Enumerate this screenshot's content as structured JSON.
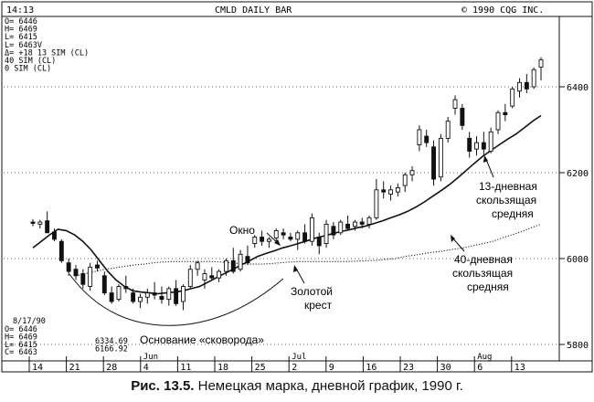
{
  "header": {
    "time": "14:13",
    "title": "CMLD DAILY BAR",
    "copyright": "©     1990 CQG INC."
  },
  "readout_top": [
    "O= 6446",
    "H= 6469",
    "L= 6415",
    "L= 6463V",
    "Δ=    +18  13 SIM (CL)",
    "           40 SIM (CL)",
    "            0 SIM (CL)"
  ],
  "readout_bottom": {
    "date": "8/17/90",
    "lines": [
      "O=  6446",
      "H=  6469",
      "L=  6415",
      "C=  6463"
    ],
    "values": [
      "6334.69",
      "6166.92"
    ]
  },
  "caption": {
    "prefix": "Рис. 13.5.",
    "text": " Немецкая марка, дневной график, 1990 г."
  },
  "chart_data": {
    "type": "candlestick",
    "title": "CMLD DAILY BAR",
    "y_ticks": [
      5800,
      6000,
      6200,
      6400
    ],
    "ylim": [
      5780,
      6490
    ],
    "x_tick_labels": [
      "14",
      "21",
      "28",
      "4",
      "11",
      "18",
      "25",
      "2",
      "9",
      "16",
      "23",
      "30",
      "6",
      "13"
    ],
    "month_labels": [
      {
        "label": "Jun",
        "after_tick": 2
      },
      {
        "label": "Jul",
        "after_tick": 6
      },
      {
        "label": "Aug",
        "after_tick": 11
      }
    ],
    "candles": [
      {
        "o": 6085,
        "h": 6092,
        "l": 6075,
        "c": 6082
      },
      {
        "o": 6080,
        "h": 6090,
        "l": 6070,
        "c": 6085
      },
      {
        "o": 6088,
        "h": 6110,
        "l": 6060,
        "c": 6060
      },
      {
        "o": 6062,
        "h": 6070,
        "l": 6040,
        "c": 6045
      },
      {
        "o": 6040,
        "h": 6045,
        "l": 5990,
        "c": 5995
      },
      {
        "o": 5990,
        "h": 6000,
        "l": 5960,
        "c": 5970
      },
      {
        "o": 5975,
        "h": 5985,
        "l": 5950,
        "c": 5960
      },
      {
        "o": 5965,
        "h": 5975,
        "l": 5930,
        "c": 5940
      },
      {
        "o": 5935,
        "h": 5990,
        "l": 5925,
        "c": 5980
      },
      {
        "o": 5985,
        "h": 5995,
        "l": 5970,
        "c": 5978
      },
      {
        "o": 5960,
        "h": 5970,
        "l": 5915,
        "c": 5920
      },
      {
        "o": 5920,
        "h": 5935,
        "l": 5895,
        "c": 5900
      },
      {
        "o": 5905,
        "h": 5940,
        "l": 5900,
        "c": 5935
      },
      {
        "o": 5935,
        "h": 5960,
        "l": 5920,
        "c": 5930
      },
      {
        "o": 5920,
        "h": 5930,
        "l": 5895,
        "c": 5900
      },
      {
        "o": 5900,
        "h": 5918,
        "l": 5885,
        "c": 5910
      },
      {
        "o": 5910,
        "h": 5930,
        "l": 5895,
        "c": 5920
      },
      {
        "o": 5920,
        "h": 5945,
        "l": 5905,
        "c": 5915
      },
      {
        "o": 5912,
        "h": 5935,
        "l": 5895,
        "c": 5905
      },
      {
        "o": 5905,
        "h": 5935,
        "l": 5890,
        "c": 5930
      },
      {
        "o": 5930,
        "h": 5950,
        "l": 5890,
        "c": 5895
      },
      {
        "o": 5900,
        "h": 5940,
        "l": 5880,
        "c": 5935
      },
      {
        "o": 5935,
        "h": 5985,
        "l": 5930,
        "c": 5975
      },
      {
        "o": 5975,
        "h": 5995,
        "l": 5960,
        "c": 5990
      },
      {
        "o": 5950,
        "h": 5975,
        "l": 5930,
        "c": 5965
      },
      {
        "o": 5960,
        "h": 5980,
        "l": 5950,
        "c": 5955
      },
      {
        "o": 5955,
        "h": 5975,
        "l": 5945,
        "c": 5970
      },
      {
        "o": 5970,
        "h": 6000,
        "l": 5960,
        "c": 5995
      },
      {
        "o": 5995,
        "h": 6025,
        "l": 5965,
        "c": 5970
      },
      {
        "o": 5975,
        "h": 6020,
        "l": 5970,
        "c": 6010
      },
      {
        "o": 6005,
        "h": 6030,
        "l": 5985,
        "c": 5990
      },
      {
        "o": 6035,
        "h": 6055,
        "l": 6025,
        "c": 6050
      },
      {
        "o": 6050,
        "h": 6065,
        "l": 6030,
        "c": 6040
      },
      {
        "o": 6040,
        "h": 6050,
        "l": 6025,
        "c": 6045
      },
      {
        "o": 6048,
        "h": 6070,
        "l": 6040,
        "c": 6065
      },
      {
        "o": 6060,
        "h": 6070,
        "l": 6045,
        "c": 6055
      },
      {
        "o": 6050,
        "h": 6060,
        "l": 6040,
        "c": 6045
      },
      {
        "o": 6045,
        "h": 6065,
        "l": 6020,
        "c": 6060
      },
      {
        "o": 6060,
        "h": 6080,
        "l": 6035,
        "c": 6040
      },
      {
        "o": 6040,
        "h": 6105,
        "l": 6030,
        "c": 6095
      },
      {
        "o": 6050,
        "h": 6060,
        "l": 6010,
        "c": 6030
      },
      {
        "o": 6035,
        "h": 6090,
        "l": 6025,
        "c": 6080
      },
      {
        "o": 6075,
        "h": 6085,
        "l": 6045,
        "c": 6055
      },
      {
        "o": 6060,
        "h": 6090,
        "l": 6055,
        "c": 6085
      },
      {
        "o": 6080,
        "h": 6100,
        "l": 6065,
        "c": 6070
      },
      {
        "o": 6075,
        "h": 6090,
        "l": 6065,
        "c": 6085
      },
      {
        "o": 6085,
        "h": 6095,
        "l": 6070,
        "c": 6080
      },
      {
        "o": 6080,
        "h": 6100,
        "l": 6070,
        "c": 6095
      },
      {
        "o": 6095,
        "h": 6185,
        "l": 6090,
        "c": 6160
      },
      {
        "o": 6160,
        "h": 6180,
        "l": 6140,
        "c": 6155
      },
      {
        "o": 6150,
        "h": 6170,
        "l": 6135,
        "c": 6160
      },
      {
        "o": 6155,
        "h": 6175,
        "l": 6145,
        "c": 6165
      },
      {
        "o": 6170,
        "h": 6200,
        "l": 6155,
        "c": 6195
      },
      {
        "o": 6195,
        "h": 6215,
        "l": 6180,
        "c": 6205
      },
      {
        "o": 6265,
        "h": 6310,
        "l": 6250,
        "c": 6300
      },
      {
        "o": 6285,
        "h": 6300,
        "l": 6260,
        "c": 6270
      },
      {
        "o": 6260,
        "h": 6275,
        "l": 6170,
        "c": 6185
      },
      {
        "o": 6190,
        "h": 6290,
        "l": 6180,
        "c": 6280
      },
      {
        "o": 6280,
        "h": 6330,
        "l": 6270,
        "c": 6320
      },
      {
        "o": 6350,
        "h": 6380,
        "l": 6335,
        "c": 6370
      },
      {
        "o": 6350,
        "h": 6360,
        "l": 6300,
        "c": 6310
      },
      {
        "o": 6280,
        "h": 6295,
        "l": 6235,
        "c": 6250
      },
      {
        "o": 6255,
        "h": 6285,
        "l": 6240,
        "c": 6270
      },
      {
        "o": 6270,
        "h": 6295,
        "l": 6240,
        "c": 6255
      },
      {
        "o": 6250,
        "h": 6305,
        "l": 6245,
        "c": 6295
      },
      {
        "o": 6300,
        "h": 6345,
        "l": 6290,
        "c": 6340
      },
      {
        "o": 6340,
        "h": 6360,
        "l": 6320,
        "c": 6335
      },
      {
        "o": 6355,
        "h": 6400,
        "l": 6350,
        "c": 6395
      },
      {
        "o": 6390,
        "h": 6420,
        "l": 6375,
        "c": 6410
      },
      {
        "o": 6410,
        "h": 6430,
        "l": 6385,
        "c": 6395
      },
      {
        "o": 6400,
        "h": 6445,
        "l": 6395,
        "c": 6440
      },
      {
        "o": 6446,
        "h": 6469,
        "l": 6415,
        "c": 6463
      }
    ],
    "ma13": [
      6025,
      6040,
      6055,
      6068,
      6065,
      6055,
      6040,
      6020,
      5995,
      5970,
      5950,
      5935,
      5925,
      5922,
      5920,
      5918,
      5920,
      5922,
      5925,
      5930,
      5935,
      5945,
      5955,
      5965,
      5975,
      5985,
      5995,
      6005,
      6012,
      6018,
      6025,
      6030,
      6036,
      6042,
      6048,
      6053,
      6058,
      6063,
      6067,
      6072,
      6076,
      6082,
      6088,
      6095,
      6102,
      6110,
      6120,
      6132,
      6145,
      6158,
      6172,
      6188,
      6205,
      6222,
      6238,
      6252,
      6265,
      6278,
      6290,
      6305,
      6320,
      6333
    ],
    "ma13_start": 0,
    "ma40": [
      5960,
      5965,
      5970,
      5975,
      5978,
      5982,
      5985,
      5987,
      5990,
      5992,
      5993,
      5993,
      5993,
      5993,
      5993,
      5992,
      5990,
      5988,
      5987,
      5987,
      5988,
      5990,
      5992,
      5993,
      5993,
      5993,
      5993,
      5993,
      5993,
      5994,
      5995,
      5996,
      5998,
      6000,
      6005,
      6008,
      6012,
      6015,
      6018,
      6022,
      6025,
      6030,
      6035,
      6040,
      6048,
      6055,
      6063,
      6072,
      6080
    ],
    "ma40_start": 0,
    "annotations": [
      {
        "text": "Окно"
      },
      {
        "text": "Золотой"
      },
      {
        "text": "крест"
      },
      {
        "text": "Основание «сковорода»"
      },
      {
        "text": "13-дневная"
      },
      {
        "text": "скользящая"
      },
      {
        "text": "средняя"
      },
      {
        "text": "40-дневная"
      },
      {
        "text": "скользящая"
      },
      {
        "text": "средняя"
      }
    ]
  }
}
